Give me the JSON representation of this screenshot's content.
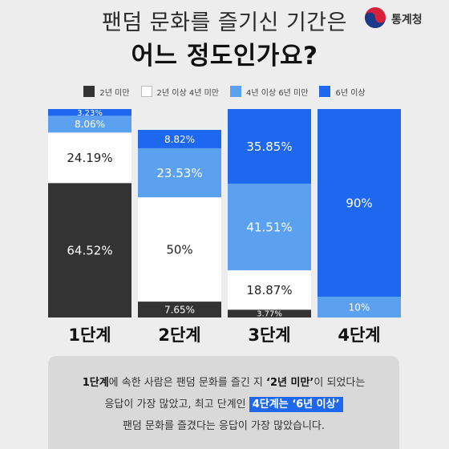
{
  "title": {
    "line1": "팬덤 문화를 즐기신 기간은",
    "line2": "어느 정도인가요?"
  },
  "logo": {
    "text": "통계청"
  },
  "legend": [
    {
      "label": "2년 미만",
      "color": "#333333"
    },
    {
      "label": "2년 이상 4년 미만",
      "color": "#ffffff"
    },
    {
      "label": "4년 이상 6년 미만",
      "color": "#5ba1ef"
    },
    {
      "label": "6년 이상",
      "color": "#1e68f0"
    }
  ],
  "chart_data": {
    "type": "bar",
    "stacked": true,
    "categories": [
      "1단계",
      "2단계",
      "3단계",
      "4단계"
    ],
    "series": [
      {
        "name": "2년 미만",
        "color": "#333333",
        "values": [
          64.52,
          7.65,
          3.77,
          0
        ]
      },
      {
        "name": "2년 이상 4년 미만",
        "color": "#ffffff",
        "values": [
          24.19,
          50,
          18.87,
          0
        ]
      },
      {
        "name": "4년 이상 6년 미만",
        "color": "#5ba1ef",
        "values": [
          8.06,
          23.53,
          41.51,
          10
        ]
      },
      {
        "name": "6년 이상",
        "color": "#1e68f0",
        "values": [
          3.23,
          8.82,
          35.85,
          90
        ]
      }
    ],
    "labels": [
      [
        "64.52%",
        "24.19%",
        "8.06%",
        "3.23%"
      ],
      [
        "7.65%",
        "50%",
        "23.53%",
        "8.82%"
      ],
      [
        "3.77%",
        "18.87%",
        "41.51%",
        "35.85%"
      ],
      [
        "",
        "",
        "10%",
        "90%"
      ]
    ],
    "ylim": [
      0,
      100
    ]
  },
  "note": {
    "p1": "1단계",
    "p2": "에 속한 사람은 팬덤 문화를 즐긴 지 ",
    "p3": "‘2년 미만’",
    "p4": "이 되었다는",
    "p5": "응답이 가장 많았고, 최고 단계인 ",
    "p6": "4단계는 ‘6년 이상’",
    "p7": "팬덤 문화를 즐겼다는 응답이 가장 많았습니다."
  }
}
